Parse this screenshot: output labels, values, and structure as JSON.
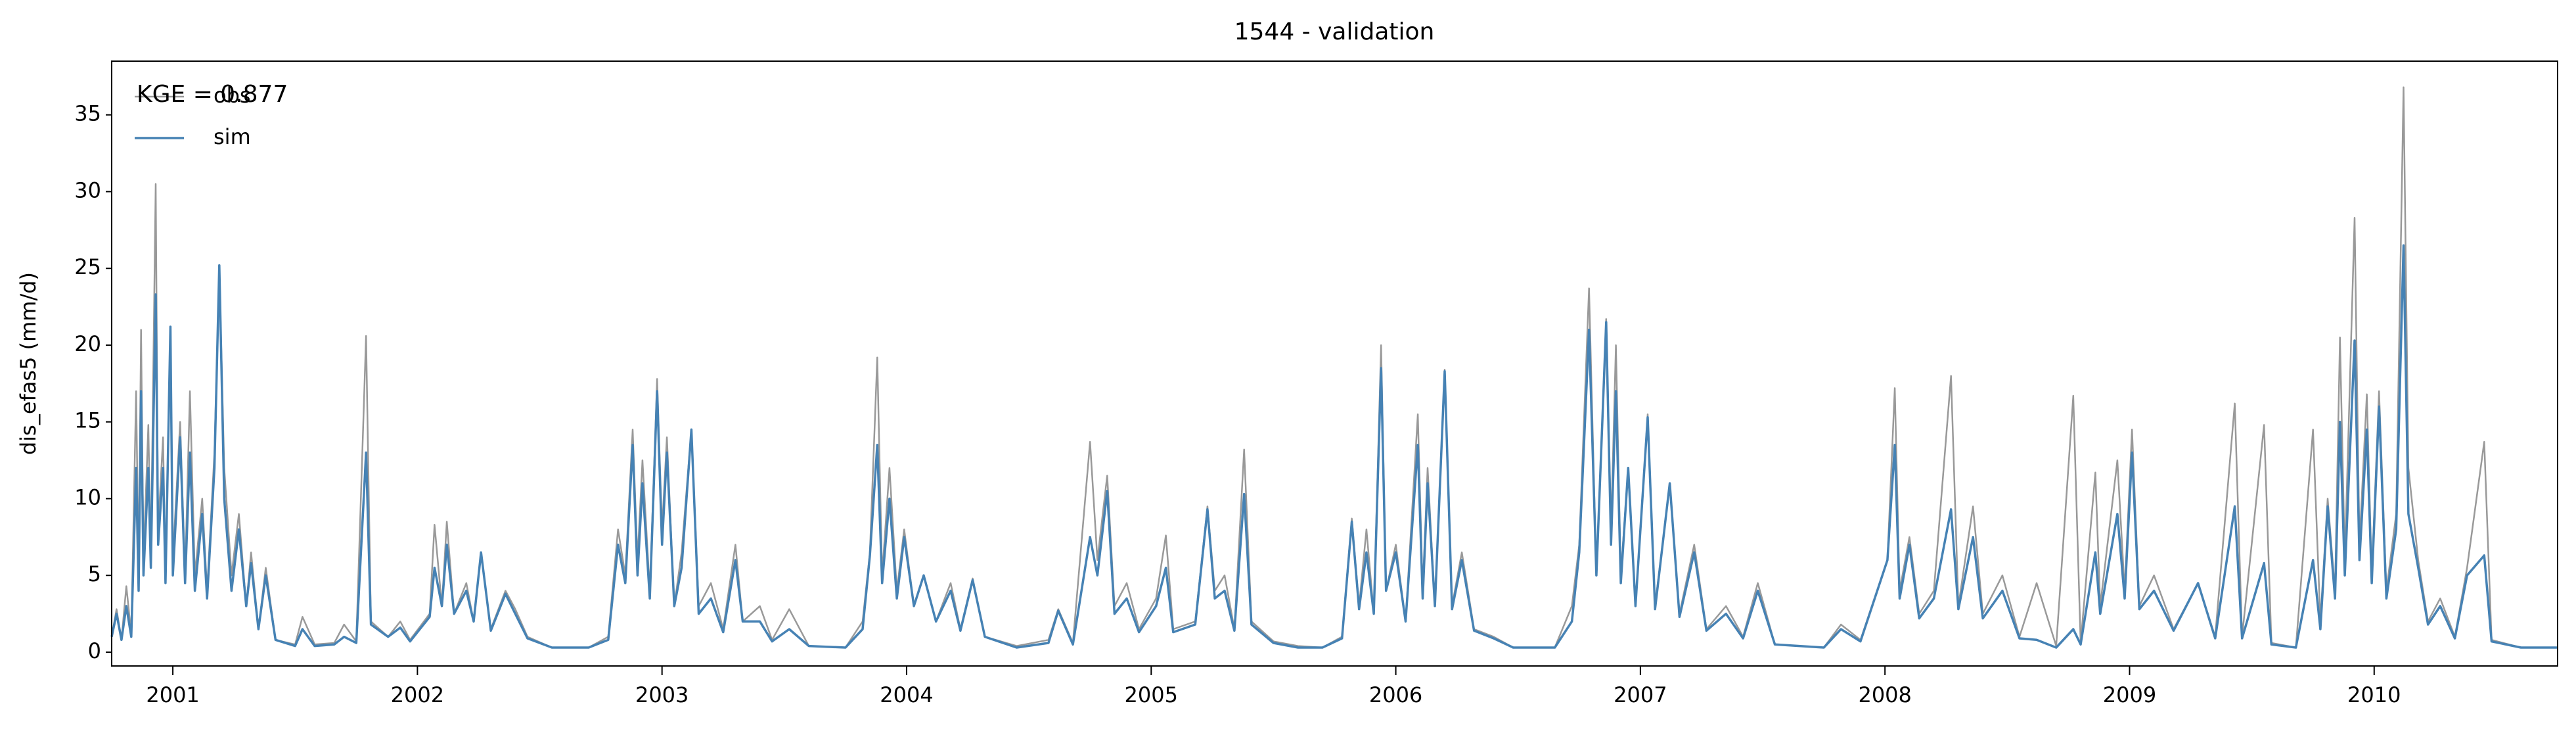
{
  "chart_data": {
    "type": "line",
    "title": "1544 - validation",
    "ylabel": "dis_efas5 (mm/d)",
    "annotation": "KGE = 0.877",
    "legend": "upper left",
    "x": [
      2000.75,
      2000.77,
      2000.79,
      2000.81,
      2000.83,
      2000.85,
      2000.86,
      2000.87,
      2000.88,
      2000.9,
      2000.91,
      2000.93,
      2000.94,
      2000.96,
      2000.97,
      2000.99,
      2001.0,
      2001.03,
      2001.05,
      2001.07,
      2001.09,
      2001.12,
      2001.14,
      2001.17,
      2001.19,
      2001.21,
      2001.24,
      2001.27,
      2001.3,
      2001.32,
      2001.35,
      2001.38,
      2001.42,
      2001.5,
      2001.53,
      2001.58,
      2001.66,
      2001.7,
      2001.75,
      2001.79,
      2001.81,
      2001.88,
      2001.93,
      2001.97,
      2002.05,
      2002.07,
      2002.1,
      2002.12,
      2002.15,
      2002.2,
      2002.23,
      2002.26,
      2002.3,
      2002.36,
      2002.4,
      2002.45,
      2002.55,
      2002.7,
      2002.78,
      2002.82,
      2002.85,
      2002.88,
      2002.9,
      2002.92,
      2002.95,
      2002.98,
      2003.0,
      2003.02,
      2003.05,
      2003.08,
      2003.12,
      2003.15,
      2003.2,
      2003.25,
      2003.3,
      2003.33,
      2003.4,
      2003.45,
      2003.52,
      2003.6,
      2003.75,
      2003.82,
      2003.85,
      2003.88,
      2003.9,
      2003.93,
      2003.96,
      2003.99,
      2004.03,
      2004.07,
      2004.12,
      2004.18,
      2004.22,
      2004.27,
      2004.32,
      2004.45,
      2004.58,
      2004.62,
      2004.68,
      2004.75,
      2004.78,
      2004.82,
      2004.85,
      2004.9,
      2004.95,
      2005.02,
      2005.06,
      2005.09,
      2005.18,
      2005.23,
      2005.26,
      2005.3,
      2005.34,
      2005.38,
      2005.41,
      2005.5,
      2005.6,
      2005.7,
      2005.78,
      2005.82,
      2005.85,
      2005.88,
      2005.91,
      2005.94,
      2005.96,
      2006.0,
      2006.04,
      2006.09,
      2006.11,
      2006.13,
      2006.16,
      2006.2,
      2006.23,
      2006.27,
      2006.32,
      2006.4,
      2006.48,
      2006.65,
      2006.72,
      2006.75,
      2006.79,
      2006.82,
      2006.86,
      2006.88,
      2006.9,
      2006.92,
      2006.95,
      2006.98,
      2007.03,
      2007.06,
      2007.12,
      2007.16,
      2007.22,
      2007.27,
      2007.35,
      2007.42,
      2007.48,
      2007.55,
      2007.75,
      2007.82,
      2007.9,
      2008.01,
      2008.04,
      2008.06,
      2008.1,
      2008.14,
      2008.2,
      2008.27,
      2008.3,
      2008.36,
      2008.4,
      2008.48,
      2008.55,
      2008.62,
      2008.7,
      2008.77,
      2008.8,
      2008.86,
      2008.88,
      2008.95,
      2008.98,
      2009.01,
      2009.04,
      2009.1,
      2009.18,
      2009.28,
      2009.35,
      2009.43,
      2009.46,
      2009.55,
      2009.58,
      2009.68,
      2009.75,
      2009.78,
      2009.81,
      2009.84,
      2009.86,
      2009.88,
      2009.92,
      2009.94,
      2009.97,
      2009.99,
      2010.02,
      2010.05,
      2010.09,
      2010.12,
      2010.14,
      2010.18,
      2010.22,
      2010.27,
      2010.33,
      2010.38,
      2010.45,
      2010.48,
      2010.6,
      2010.75
    ],
    "series": [
      {
        "name": "obs",
        "color": "#999999",
        "values": [
          1.0,
          2.8,
          0.8,
          4.3,
          1.2,
          17.0,
          5.0,
          21.0,
          6.0,
          14.8,
          6.0,
          30.5,
          8.0,
          14.0,
          5.0,
          21.0,
          6.0,
          15.0,
          5.0,
          17.0,
          5.0,
          10.0,
          4.0,
          13.0,
          25.0,
          12.0,
          5.0,
          9.0,
          3.0,
          6.5,
          1.5,
          5.5,
          0.8,
          0.5,
          2.3,
          0.5,
          0.6,
          1.8,
          0.7,
          20.6,
          2.0,
          1.0,
          2.0,
          0.8,
          2.5,
          8.3,
          3.0,
          8.5,
          2.5,
          4.5,
          2.0,
          6.5,
          1.5,
          4.0,
          2.8,
          1.0,
          0.3,
          0.3,
          1.0,
          8.0,
          5.0,
          14.5,
          6.0,
          12.5,
          4.0,
          17.8,
          8.0,
          14.0,
          3.0,
          6.5,
          14.5,
          3.0,
          4.5,
          1.5,
          7.0,
          2.0,
          3.0,
          0.8,
          2.8,
          0.4,
          0.3,
          2.0,
          6.5,
          19.2,
          5.0,
          12.0,
          4.0,
          8.0,
          3.0,
          5.0,
          2.0,
          4.5,
          1.5,
          4.8,
          1.0,
          0.4,
          0.8,
          2.8,
          0.6,
          13.7,
          6.0,
          11.5,
          3.0,
          4.5,
          1.5,
          3.5,
          7.6,
          1.5,
          2.0,
          9.5,
          4.0,
          5.0,
          1.5,
          13.2,
          2.0,
          0.7,
          0.4,
          0.3,
          1.0,
          8.7,
          3.0,
          8.0,
          2.5,
          20.0,
          4.0,
          7.0,
          2.0,
          15.5,
          4.0,
          12.0,
          3.0,
          18.4,
          3.0,
          6.5,
          1.5,
          1.0,
          0.3,
          0.3,
          3.0,
          7.0,
          23.7,
          5.0,
          21.7,
          8.0,
          20.0,
          5.0,
          12.0,
          3.0,
          15.5,
          3.0,
          11.0,
          2.5,
          7.0,
          1.5,
          3.0,
          1.0,
          4.5,
          0.5,
          0.3,
          1.8,
          0.8,
          6.0,
          17.2,
          4.0,
          7.5,
          2.5,
          4.0,
          18.0,
          3.0,
          9.5,
          2.5,
          5.0,
          1.0,
          4.5,
          0.4,
          16.7,
          0.6,
          11.7,
          3.0,
          12.5,
          4.0,
          14.5,
          3.0,
          5.0,
          1.5,
          4.5,
          1.0,
          16.2,
          1.0,
          14.8,
          0.6,
          0.3,
          14.5,
          2.0,
          10.0,
          4.0,
          20.5,
          6.0,
          28.3,
          7.0,
          16.8,
          5.0,
          17.0,
          4.0,
          9.0,
          36.8,
          12.0,
          6.0,
          2.0,
          3.5,
          1.0,
          5.5,
          13.7,
          0.8,
          0.3,
          0.3
        ]
      },
      {
        "name": "sim",
        "color": "#4682b4",
        "values": [
          1.0,
          2.5,
          0.8,
          3.0,
          1.0,
          12.0,
          4.0,
          17.0,
          5.0,
          12.0,
          5.5,
          23.3,
          7.0,
          12.0,
          4.5,
          21.2,
          5.0,
          14.0,
          4.5,
          13.0,
          4.0,
          9.0,
          3.5,
          12.0,
          25.2,
          10.0,
          4.0,
          8.0,
          3.0,
          5.8,
          1.5,
          5.0,
          0.8,
          0.4,
          1.5,
          0.4,
          0.5,
          1.0,
          0.6,
          13.0,
          1.8,
          1.0,
          1.6,
          0.7,
          2.3,
          5.5,
          3.0,
          7.0,
          2.5,
          4.0,
          2.0,
          6.5,
          1.4,
          3.8,
          2.5,
          0.9,
          0.3,
          0.3,
          0.8,
          7.0,
          4.5,
          13.5,
          5.0,
          11.0,
          3.5,
          17.0,
          7.0,
          13.0,
          3.0,
          5.5,
          14.5,
          2.5,
          3.5,
          1.3,
          6.0,
          2.0,
          2.0,
          0.7,
          1.5,
          0.4,
          0.3,
          1.5,
          6.3,
          13.5,
          4.5,
          10.0,
          3.5,
          7.5,
          3.0,
          5.0,
          2.0,
          4.0,
          1.4,
          4.7,
          1.0,
          0.3,
          0.6,
          2.7,
          0.5,
          7.5,
          5.0,
          10.5,
          2.5,
          3.5,
          1.3,
          3.0,
          5.5,
          1.3,
          1.8,
          9.3,
          3.5,
          4.0,
          1.4,
          10.3,
          1.8,
          0.6,
          0.3,
          0.3,
          0.9,
          8.5,
          2.8,
          6.5,
          2.5,
          18.5,
          4.0,
          6.5,
          2.0,
          13.5,
          3.5,
          11.0,
          3.0,
          18.3,
          2.8,
          6.0,
          1.4,
          0.9,
          0.3,
          0.3,
          2.0,
          6.5,
          21.0,
          5.0,
          21.5,
          7.0,
          17.0,
          4.5,
          12.0,
          3.0,
          15.3,
          2.8,
          11.0,
          2.3,
          6.5,
          1.4,
          2.5,
          0.9,
          4.0,
          0.5,
          0.3,
          1.5,
          0.7,
          6.0,
          13.5,
          3.5,
          7.0,
          2.2,
          3.5,
          9.3,
          2.8,
          7.5,
          2.2,
          4.0,
          0.9,
          0.8,
          0.3,
          1.5,
          0.5,
          6.5,
          2.5,
          9.0,
          3.5,
          13.0,
          2.8,
          4.0,
          1.4,
          4.5,
          0.9,
          9.5,
          0.9,
          5.8,
          0.5,
          0.3,
          6.0,
          1.5,
          9.5,
          3.5,
          15.0,
          5.0,
          20.3,
          6.0,
          14.5,
          4.5,
          16.0,
          3.5,
          8.0,
          26.5,
          9.0,
          5.5,
          1.8,
          3.0,
          0.9,
          5.0,
          6.3,
          0.7,
          0.3,
          0.3
        ]
      }
    ],
    "xlim": [
      2000.75,
      2010.75
    ],
    "xticks": [
      2001,
      2002,
      2003,
      2004,
      2005,
      2006,
      2007,
      2008,
      2009,
      2010
    ],
    "ylim": [
      -0.9,
      38.5
    ],
    "yticks": [
      0,
      5,
      10,
      15,
      20,
      25,
      30,
      35
    ]
  }
}
